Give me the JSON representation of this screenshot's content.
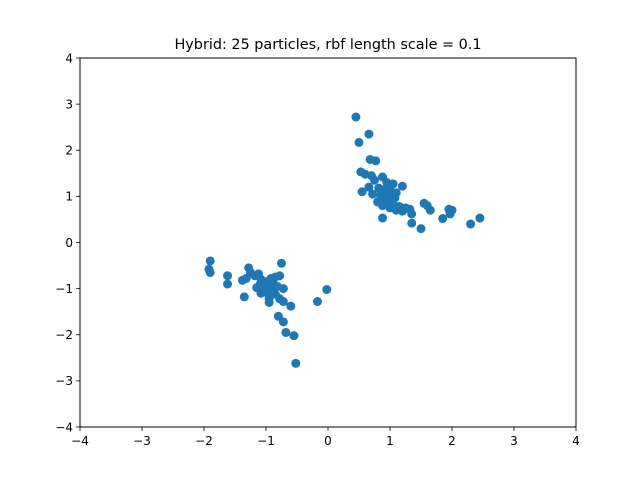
{
  "chart_data": {
    "type": "scatter",
    "title": "Hybrid: 25 particles, rbf length scale = 0.1",
    "xlabel": "",
    "ylabel": "",
    "xlim": [
      -4,
      4
    ],
    "ylim": [
      -4,
      4
    ],
    "xticks": [
      "−4",
      "−3",
      "−2",
      "−1",
      "0",
      "1",
      "2",
      "3",
      "4"
    ],
    "yticks": [
      "−4",
      "−3",
      "−2",
      "−1",
      "0",
      "1",
      "2",
      "3",
      "4"
    ],
    "grid": false,
    "legend": "none",
    "marker_color": "#1f77b4",
    "series": [
      {
        "points": [
          [
            0.45,
            2.72
          ],
          [
            0.66,
            2.35
          ],
          [
            0.5,
            2.17
          ],
          [
            0.68,
            1.8
          ],
          [
            0.77,
            1.77
          ],
          [
            0.53,
            1.53
          ],
          [
            0.6,
            1.48
          ],
          [
            0.7,
            1.45
          ],
          [
            0.88,
            1.42
          ],
          [
            0.75,
            1.35
          ],
          [
            0.95,
            1.3
          ],
          [
            1.05,
            1.27
          ],
          [
            1.2,
            1.22
          ],
          [
            0.66,
            1.2
          ],
          [
            0.82,
            1.18
          ],
          [
            0.92,
            1.15
          ],
          [
            1.0,
            1.12
          ],
          [
            1.1,
            1.08
          ],
          [
            0.55,
            1.1
          ],
          [
            0.72,
            1.05
          ],
          [
            0.85,
            1.02
          ],
          [
            0.98,
            1.0
          ],
          [
            1.08,
            0.97
          ],
          [
            0.9,
            0.95
          ],
          [
            1.02,
            0.92
          ],
          [
            0.8,
            0.88
          ],
          [
            0.92,
            0.85
          ],
          [
            1.05,
            0.82
          ],
          [
            1.15,
            0.78
          ],
          [
            1.25,
            0.75
          ],
          [
            1.32,
            0.72
          ],
          [
            0.88,
            0.8
          ],
          [
            1.0,
            0.75
          ],
          [
            1.1,
            0.7
          ],
          [
            1.2,
            0.68
          ],
          [
            1.35,
            0.62
          ],
          [
            1.55,
            0.85
          ],
          [
            1.6,
            0.8
          ],
          [
            1.65,
            0.7
          ],
          [
            1.95,
            0.72
          ],
          [
            2.0,
            0.7
          ],
          [
            1.97,
            0.62
          ],
          [
            1.85,
            0.52
          ],
          [
            0.88,
            0.53
          ],
          [
            1.35,
            0.42
          ],
          [
            1.5,
            0.3
          ],
          [
            2.3,
            0.4
          ],
          [
            2.45,
            0.53
          ],
          [
            -1.9,
            -0.4
          ],
          [
            -1.92,
            -0.58
          ],
          [
            -1.9,
            -0.65
          ],
          [
            -1.62,
            -0.72
          ],
          [
            -1.62,
            -0.9
          ],
          [
            -1.38,
            -0.82
          ],
          [
            -1.32,
            -0.78
          ],
          [
            -1.28,
            -0.55
          ],
          [
            -1.25,
            -0.65
          ],
          [
            -1.18,
            -0.72
          ],
          [
            -1.12,
            -0.68
          ],
          [
            -1.08,
            -0.8
          ],
          [
            -1.0,
            -0.85
          ],
          [
            -0.92,
            -0.78
          ],
          [
            -0.85,
            -0.75
          ],
          [
            -0.78,
            -0.72
          ],
          [
            -0.75,
            -0.45
          ],
          [
            -1.1,
            -0.92
          ],
          [
            -1.05,
            -1.0
          ],
          [
            -0.95,
            -0.95
          ],
          [
            -0.88,
            -0.9
          ],
          [
            -0.82,
            -0.95
          ],
          [
            -0.72,
            -1.0
          ],
          [
            -1.08,
            -1.1
          ],
          [
            -1.0,
            -1.08
          ],
          [
            -0.92,
            -1.05
          ],
          [
            -0.85,
            -1.12
          ],
          [
            -0.95,
            -1.22
          ],
          [
            -0.78,
            -1.22
          ],
          [
            -0.72,
            -1.28
          ],
          [
            -0.6,
            -1.38
          ],
          [
            -1.35,
            -1.18
          ],
          [
            -0.95,
            -1.3
          ],
          [
            -0.8,
            -1.6
          ],
          [
            -0.72,
            -1.72
          ],
          [
            -0.68,
            -1.95
          ],
          [
            -0.55,
            -2.02
          ],
          [
            -0.52,
            -2.62
          ],
          [
            -0.17,
            -1.28
          ],
          [
            -0.02,
            -1.02
          ],
          [
            -0.9,
            -0.82
          ],
          [
            -1.15,
            -0.98
          ]
        ]
      }
    ]
  }
}
